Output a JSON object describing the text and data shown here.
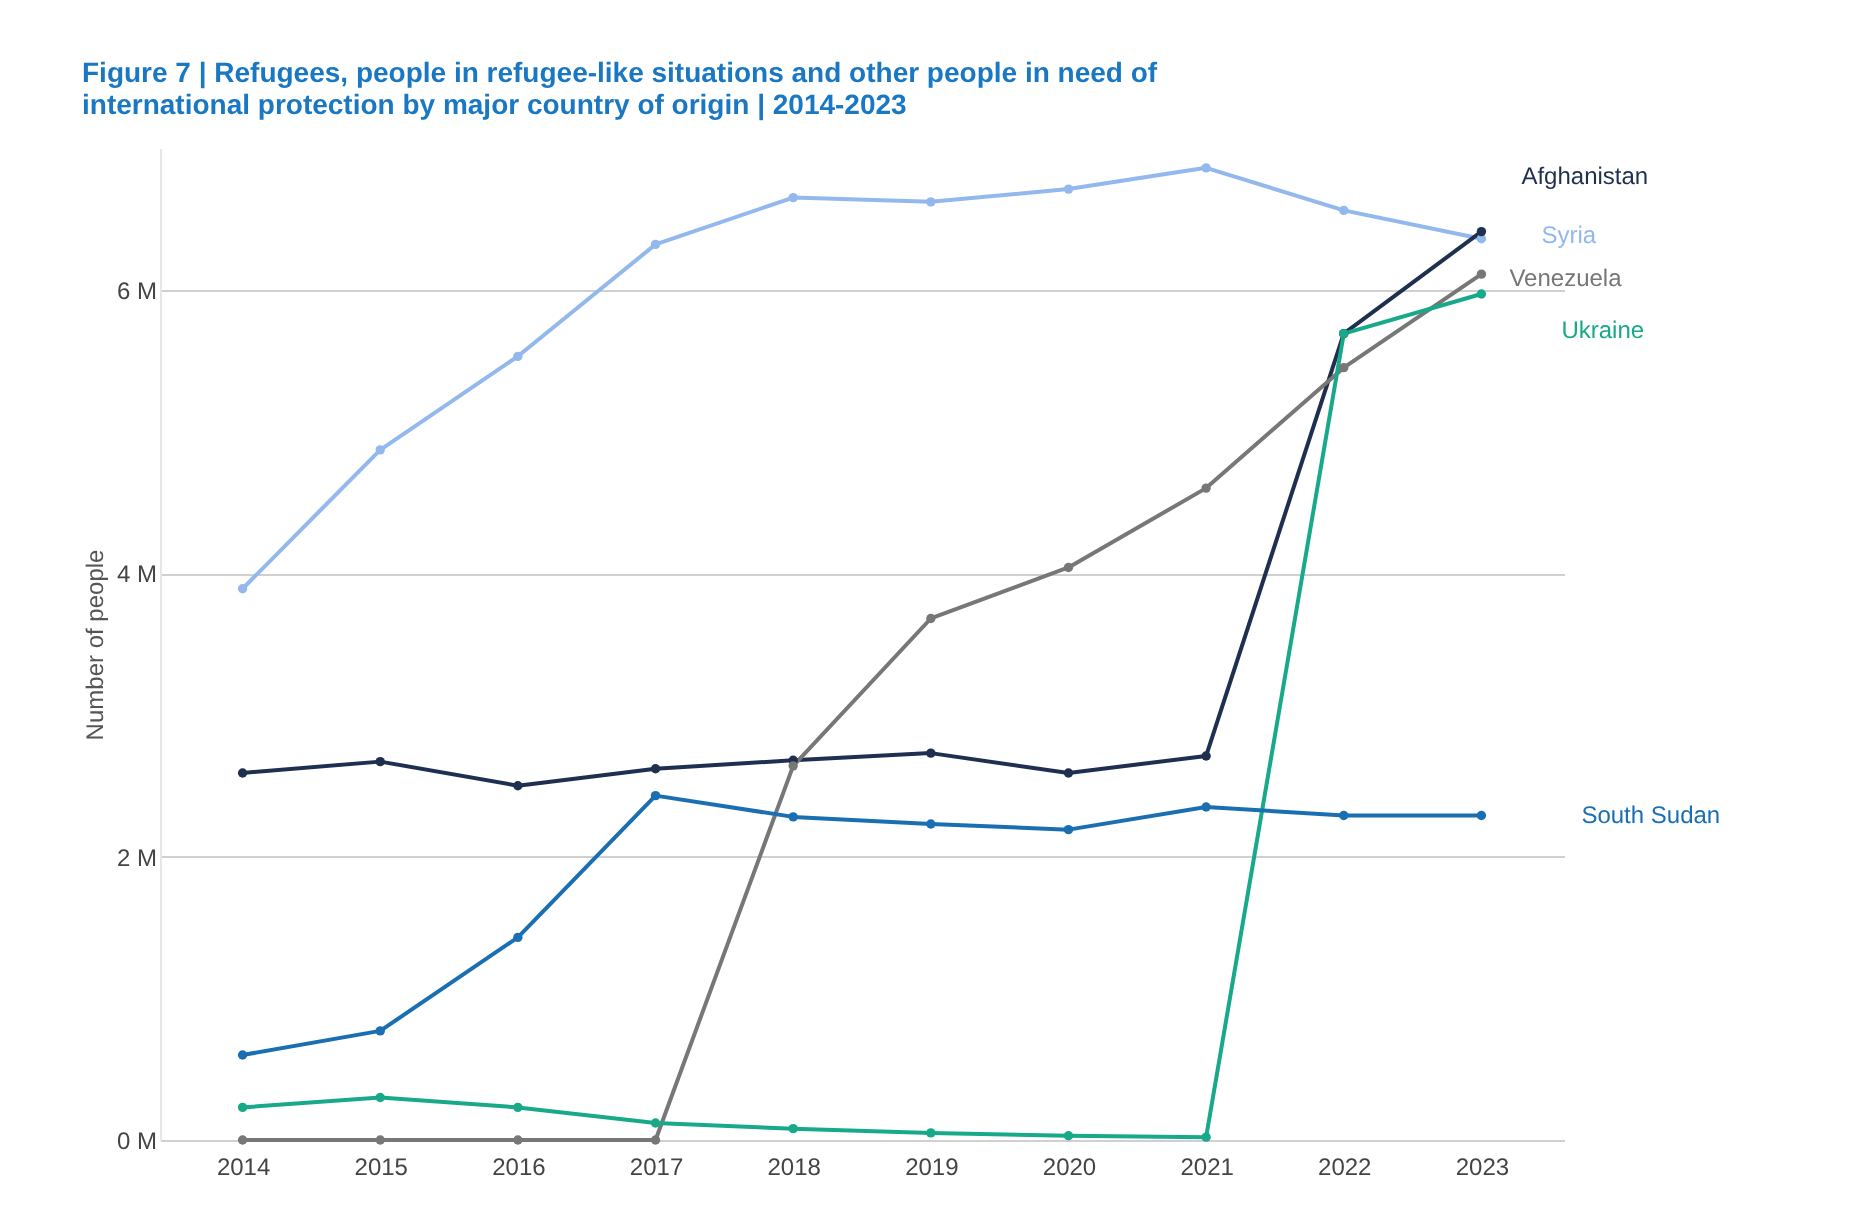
{
  "chart_data": {
    "type": "line",
    "title": "Figure 7 | Refugees, people in refugee-like situations and other people in need of international protection by major country of origin | 2014-2023",
    "ylabel": "Number of people",
    "categories": [
      "2014",
      "2015",
      "2016",
      "2017",
      "2018",
      "2019",
      "2020",
      "2021",
      "2022",
      "2023"
    ],
    "series": [
      {
        "name": "Syria",
        "color": "#93b8ee",
        "values": [
          3.89,
          4.87,
          5.53,
          6.32,
          6.65,
          6.62,
          6.71,
          6.86,
          6.56,
          6.36
        ]
      },
      {
        "name": "Afghanistan",
        "color": "#1f2f4f",
        "values": [
          2.59,
          2.67,
          2.5,
          2.62,
          2.68,
          2.73,
          2.59,
          2.71,
          5.69,
          6.41
        ]
      },
      {
        "name": "Venezuela",
        "color": "#777777",
        "values": [
          0,
          0,
          0,
          0,
          2.64,
          3.68,
          4.04,
          4.6,
          5.45,
          6.11
        ]
      },
      {
        "name": "Ukraine",
        "color": "#18a98a",
        "values": [
          0.23,
          0.3,
          0.23,
          0.12,
          0.08,
          0.05,
          0.03,
          0.02,
          5.69,
          5.97
        ]
      },
      {
        "name": "South Sudan",
        "color": "#1a6fb3",
        "values": [
          0.6,
          0.77,
          1.43,
          2.43,
          2.28,
          2.23,
          2.19,
          2.35,
          2.29,
          2.29
        ]
      }
    ],
    "ylim": [
      0,
      7
    ],
    "yticks": [
      {
        "value": 0,
        "label": "0 M"
      },
      {
        "value": 2,
        "label": "2 M"
      },
      {
        "value": 4,
        "label": "4 M"
      },
      {
        "value": 6,
        "label": "6 M"
      }
    ],
    "grid": "y",
    "legend": false,
    "marker": "circle",
    "line_style": "solid"
  }
}
